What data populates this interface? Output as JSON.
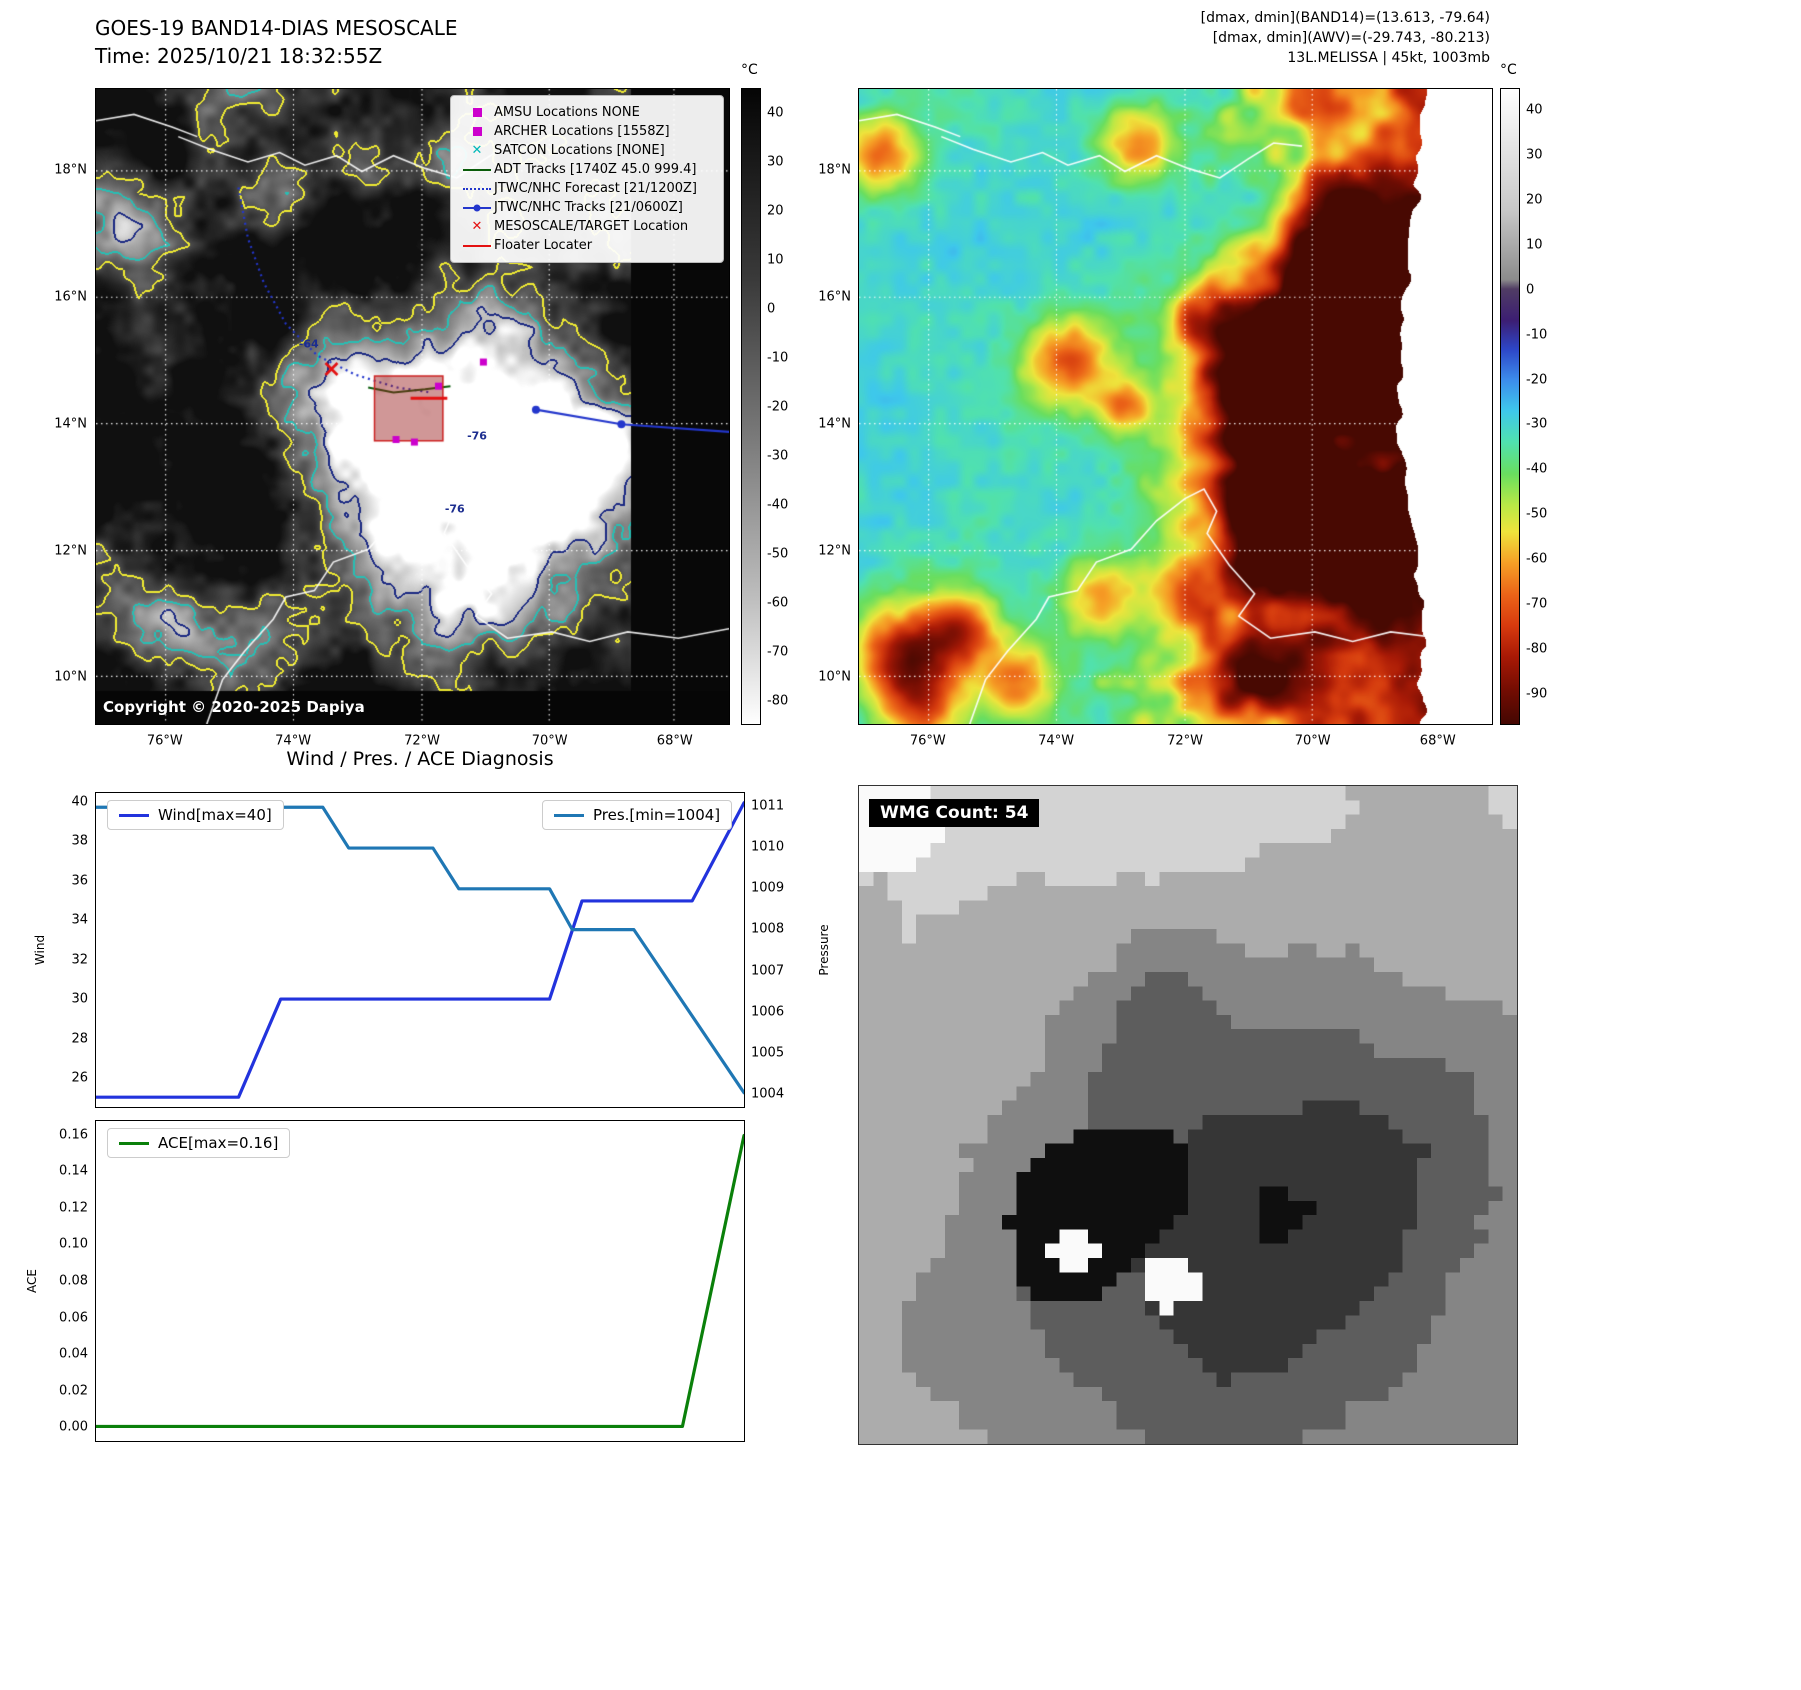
{
  "band14": {
    "title": "GOES-19 BAND14-DIAS MESOSCALE",
    "time_line": "Time: 2025/10/21 18:32:55Z",
    "copyright": "Copyright © 2020-2025 Dapiya",
    "colorbar": {
      "unit": "°C",
      "ticks": [
        40,
        30,
        20,
        10,
        0,
        -10,
        -20,
        -30,
        -40,
        -50,
        -60,
        -70,
        -80
      ]
    },
    "legend": [
      {
        "label": "AMSU Locations NONE",
        "marker": "square",
        "color": "#cc00cc"
      },
      {
        "label": "ARCHER Locations [1558Z]",
        "marker": "square",
        "color": "#cc00cc"
      },
      {
        "label": "SATCON Locations [NONE]",
        "marker": "x",
        "color": "#00b8b8"
      },
      {
        "label": "ADT Tracks [1740Z 45.0 999.4]",
        "marker": "line",
        "color": "#0a5c0a"
      },
      {
        "label": "JTWC/NHC Forecast [21/1200Z]",
        "marker": "dotted-line",
        "color": "#2336cc"
      },
      {
        "label": "JTWC/NHC Tracks [21/0600Z]",
        "marker": "line-dot",
        "color": "#2336cc"
      },
      {
        "label": "MESOSCALE/TARGET Location",
        "marker": "x",
        "color": "#e41111"
      },
      {
        "label": "Floater Locater",
        "marker": "line",
        "color": "#e41111"
      }
    ],
    "contour_labels": [
      {
        "text": "-64",
        "fx": 0.335,
        "fy": 0.4
      },
      {
        "text": "-76",
        "fx": 0.6,
        "fy": 0.545
      },
      {
        "text": "-76",
        "fx": 0.565,
        "fy": 0.66
      }
    ]
  },
  "awv": {
    "header_lines": [
      "[dmax, dmin](BAND14)=(13.613, -79.64)",
      "[dmax, dmin](AWV)=(-29.743, -80.213)",
      "13L.MELISSA | 45kt, 1003mb"
    ],
    "colorbar": {
      "unit": "°C",
      "ticks": [
        40,
        30,
        20,
        10,
        0,
        -10,
        -20,
        -30,
        -40,
        -50,
        -60,
        -70,
        -80,
        -90
      ]
    }
  },
  "map_axes": {
    "xticks": [
      "76°W",
      "74°W",
      "72°W",
      "70°W",
      "68°W"
    ],
    "yticks": [
      "18°N",
      "16°N",
      "14°N",
      "12°N",
      "10°N"
    ]
  },
  "wmg": {
    "label": "WMG Count: 54"
  },
  "chart_data": [
    {
      "type": "line",
      "title": "Wind / Pres. / ACE Diagnosis",
      "series": [
        {
          "name": "Wind[max=40]",
          "yaxis": "left",
          "color": "#2233dd",
          "x": [
            0,
            0.22,
            0.285,
            0.7,
            0.75,
            0.92,
            1.0
          ],
          "y": [
            25,
            25,
            30,
            30,
            35,
            35,
            40
          ]
        },
        {
          "name": "Pres.[min=1004]",
          "yaxis": "right",
          "color": "#1f77b4",
          "x": [
            0,
            0.35,
            0.39,
            0.52,
            0.56,
            0.7,
            0.735,
            0.83,
            1.0
          ],
          "y": [
            1011,
            1011,
            1010,
            1010,
            1009,
            1009,
            1008,
            1008,
            1004
          ]
        }
      ],
      "left_axis": {
        "label": "Wind",
        "ticks": [
          26,
          28,
          30,
          32,
          34,
          36,
          38,
          40
        ],
        "range": [
          24.5,
          40.5
        ],
        "decimals": 0
      },
      "right_axis": {
        "label": "Pressure",
        "ticks": [
          1004,
          1005,
          1006,
          1007,
          1008,
          1009,
          1010,
          1011
        ],
        "range": [
          1003.65,
          1011.35
        ],
        "decimals": 0
      },
      "legend_position": "upper-left and upper-right",
      "grid": false
    },
    {
      "type": "line",
      "series": [
        {
          "name": "ACE[max=0.16]",
          "yaxis": "left",
          "color": "#0a800a",
          "x": [
            0,
            0.905,
            1.0
          ],
          "y": [
            0,
            0,
            0.16
          ]
        }
      ],
      "left_axis": {
        "label": "ACE",
        "ticks": [
          0,
          0.02,
          0.04,
          0.06,
          0.08,
          0.1,
          0.12,
          0.14,
          0.16
        ],
        "range": [
          -0.008,
          0.168
        ],
        "decimals": 2
      },
      "legend_position": "upper-left",
      "grid": false
    }
  ]
}
